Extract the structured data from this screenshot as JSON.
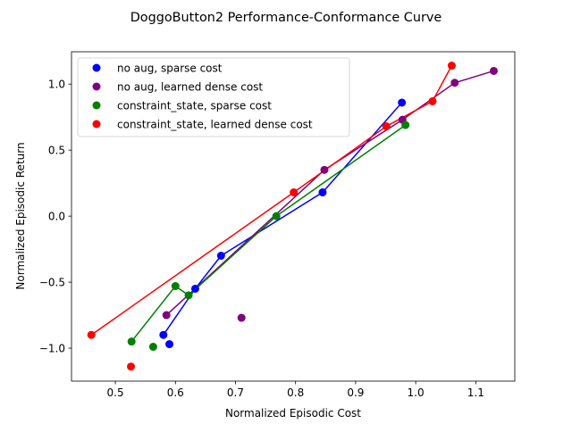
{
  "chart_data": {
    "type": "scatter",
    "title": "DoggoButton2 Performance-Conformance Curve",
    "xlabel": "Normalized Episodic Cost",
    "ylabel": "Normalized Episodic Return",
    "xlim": [
      0.427,
      1.165
    ],
    "ylim": [
      -1.25,
      1.245
    ],
    "xticks": [
      0.5,
      0.6,
      0.7,
      0.8,
      0.9,
      1.0,
      1.1
    ],
    "xtick_labels": [
      "0.5",
      "0.6",
      "0.7",
      "0.8",
      "0.9",
      "1.0",
      "1.1"
    ],
    "yticks": [
      -1.0,
      -0.5,
      0.0,
      0.5,
      1.0
    ],
    "ytick_labels": [
      "−1.0",
      "−0.5",
      "0.0",
      "0.5",
      "1.0"
    ],
    "grid": false,
    "legend_position": "upper-left",
    "series": [
      {
        "name": "no aug, sparse cost",
        "color": "#0000ff",
        "points": [
          [
            0.58,
            -0.9
          ],
          [
            0.59,
            -0.97
          ],
          [
            0.633,
            -0.55
          ],
          [
            0.676,
            -0.3
          ],
          [
            0.845,
            0.18
          ],
          [
            0.977,
            0.86
          ]
        ],
        "frontier": [
          [
            0.58,
            -0.9
          ],
          [
            0.633,
            -0.55
          ],
          [
            0.676,
            -0.3
          ],
          [
            0.845,
            0.18
          ],
          [
            0.977,
            0.86
          ]
        ]
      },
      {
        "name": "no aug, learned dense cost",
        "color": "#800080",
        "points": [
          [
            0.585,
            -0.75
          ],
          [
            0.71,
            -0.77
          ],
          [
            0.848,
            0.35
          ],
          [
            0.978,
            0.73
          ],
          [
            1.065,
            1.01
          ],
          [
            1.13,
            1.1
          ]
        ],
        "frontier": [
          [
            0.585,
            -0.75
          ],
          [
            0.848,
            0.35
          ],
          [
            0.978,
            0.73
          ],
          [
            1.065,
            1.01
          ],
          [
            1.13,
            1.1
          ]
        ]
      },
      {
        "name": "constraint_state, sparse cost",
        "color": "#008000",
        "points": [
          [
            0.527,
            -0.95
          ],
          [
            0.563,
            -0.99
          ],
          [
            0.6,
            -0.53
          ],
          [
            0.622,
            -0.6
          ],
          [
            0.768,
            0.0
          ],
          [
            0.983,
            0.69
          ]
        ],
        "frontier": [
          [
            0.527,
            -0.95
          ],
          [
            0.6,
            -0.53
          ],
          [
            0.622,
            -0.6
          ],
          [
            0.768,
            0.0
          ],
          [
            0.983,
            0.69
          ]
        ]
      },
      {
        "name": "constraint_state, learned dense cost",
        "color": "#ff0000",
        "points": [
          [
            0.46,
            -0.9
          ],
          [
            0.526,
            -1.14
          ],
          [
            0.797,
            0.18
          ],
          [
            0.951,
            0.68
          ],
          [
            1.028,
            0.87
          ],
          [
            1.06,
            1.14
          ]
        ],
        "frontier": [
          [
            0.46,
            -0.9
          ],
          [
            0.797,
            0.18
          ],
          [
            0.951,
            0.68
          ],
          [
            1.028,
            0.87
          ],
          [
            1.06,
            1.14
          ]
        ]
      }
    ]
  }
}
